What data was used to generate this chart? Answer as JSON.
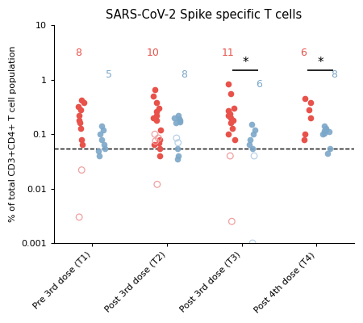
{
  "title": "SARS-CoV-2 Spike specific T cells",
  "ylabel": "% of total CD3+CD4+ T cell population",
  "xlabels": [
    "Pre 3rd dose (T1)",
    "Post 3rd dose (T2)",
    "Post 3rd dose (T3)",
    "Post 4th dose (T4)"
  ],
  "ylim_log": [
    0.001,
    10
  ],
  "dashed_line": 0.055,
  "red_color": "#E8524A",
  "blue_color": "#7BA7C9",
  "red_open_color": "#F0A0A0",
  "blue_open_color": "#B8D0E8",
  "counts_red": [
    8,
    10,
    11,
    6
  ],
  "counts_blue": [
    5,
    8,
    6,
    8
  ],
  "T1_red_filled": [
    0.42,
    0.38,
    0.32,
    0.28,
    0.22,
    0.18,
    0.16,
    0.13,
    0.08,
    0.065
  ],
  "T1_red_open": [
    0.022,
    0.003
  ],
  "T1_blue_filled": [
    0.14,
    0.12,
    0.1,
    0.08,
    0.065,
    0.055,
    0.05,
    0.04
  ],
  "T1_blue_open": [],
  "T2_red_filled": [
    0.65,
    0.5,
    0.38,
    0.3,
    0.26,
    0.22,
    0.2,
    0.18,
    0.12,
    0.08,
    0.07,
    0.065,
    0.055,
    0.04
  ],
  "T2_red_open": [
    0.1,
    0.085,
    0.075,
    0.012
  ],
  "T2_blue_filled": [
    0.22,
    0.2,
    0.19,
    0.18,
    0.17,
    0.16,
    0.055,
    0.04,
    0.035
  ],
  "T2_blue_open": [
    0.085,
    0.07
  ],
  "T3_red_filled": [
    0.85,
    0.55,
    0.3,
    0.27,
    0.24,
    0.22,
    0.2,
    0.18,
    0.16,
    0.13,
    0.1,
    0.08
  ],
  "T3_red_open": [
    0.04,
    0.0025
  ],
  "T3_blue_filled": [
    0.15,
    0.12,
    0.1,
    0.08,
    0.065,
    0.055
  ],
  "T3_blue_open": [
    0.04,
    0.001
  ],
  "T4_red_filled": [
    0.45,
    0.38,
    0.28,
    0.2,
    0.1,
    0.08
  ],
  "T4_red_open": [],
  "T4_blue_filled": [
    0.14,
    0.13,
    0.12,
    0.115,
    0.11,
    0.105,
    0.1,
    0.055,
    0.045
  ],
  "T4_blue_open": []
}
